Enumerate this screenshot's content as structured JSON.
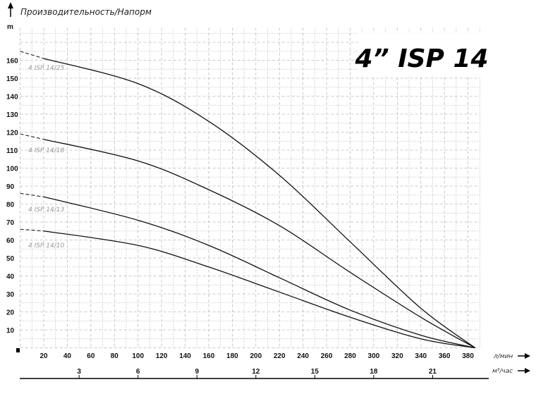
{
  "chart_data": {
    "type": "line",
    "title": "4” ISP 14",
    "subtitle": "Производительность/Напорм",
    "ylabel": "m",
    "xlabel": "л/мин",
    "x2label": "м³/час",
    "xlim": [
      0,
      390
    ],
    "ylim": [
      0,
      178
    ],
    "grid": true,
    "x_ticks": [
      20,
      40,
      60,
      80,
      100,
      120,
      140,
      160,
      180,
      200,
      220,
      240,
      260,
      280,
      300,
      320,
      340,
      360,
      380
    ],
    "y_ticks": [
      10,
      20,
      30,
      40,
      50,
      60,
      70,
      80,
      90,
      100,
      110,
      120,
      130,
      140,
      150,
      160
    ],
    "x2_ticks": [
      3,
      6,
      9,
      12,
      15,
      18,
      21
    ],
    "dashed_until_x": 20,
    "series": [
      {
        "name": "4 ISP 14/25",
        "points": [
          [
            0,
            165
          ],
          [
            20,
            161
          ],
          [
            100,
            147
          ],
          [
            160,
            126
          ],
          [
            220,
            96
          ],
          [
            280,
            59
          ],
          [
            340,
            22
          ],
          [
            386,
            0
          ]
        ]
      },
      {
        "name": "4 ISP 14/18",
        "points": [
          [
            0,
            119
          ],
          [
            20,
            116
          ],
          [
            100,
            104
          ],
          [
            160,
            88
          ],
          [
            220,
            68
          ],
          [
            280,
            42
          ],
          [
            340,
            17
          ],
          [
            386,
            0
          ]
        ]
      },
      {
        "name": "4 ISP 14/13",
        "points": [
          [
            0,
            86
          ],
          [
            20,
            84
          ],
          [
            100,
            71
          ],
          [
            160,
            57
          ],
          [
            220,
            39
          ],
          [
            280,
            21
          ],
          [
            340,
            7
          ],
          [
            386,
            0
          ]
        ]
      },
      {
        "name": "4 ISP 14/10",
        "points": [
          [
            0,
            66
          ],
          [
            20,
            65
          ],
          [
            100,
            57
          ],
          [
            160,
            45
          ],
          [
            220,
            31
          ],
          [
            280,
            17
          ],
          [
            340,
            5
          ],
          [
            386,
            0
          ]
        ]
      }
    ],
    "colors": {
      "curve": "#111111",
      "grid": "#bbbbbb",
      "label": "#999999"
    }
  }
}
